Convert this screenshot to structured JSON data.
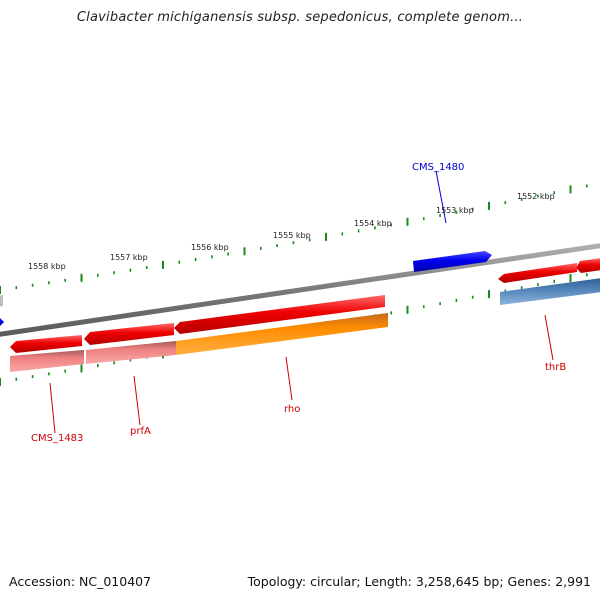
{
  "title": "Clavibacter michiganensis subsp. sepedonicus, complete genom...",
  "footer": {
    "accession": "Accession: NC_010407",
    "summary": "Topology: circular; Length: 3,258,645 bp; Genes: 2,991"
  },
  "colors": {
    "forward_gene": "#0000ee",
    "reverse_gene": "#ee0000",
    "rRNA_like": "#ff8c00",
    "ortholog_row": "#f08080",
    "ortholog_blue": "#4f82b8",
    "backbone": "#808080",
    "ticks": "#1a8a1a",
    "blue_label": "#0000cc",
    "red_label": "#cc0000"
  },
  "scale_labels": [
    "1552 kbp",
    "1553 kbp",
    "1554 kbp",
    "1555 kbp",
    "1556 kbp",
    "1557 kbp",
    "1558 kbp"
  ],
  "gene_labels": [
    {
      "name": "CMS_1480",
      "color": "blue_label"
    },
    {
      "name": "CMS_1483",
      "color": "red_label"
    },
    {
      "name": "prfA",
      "color": "red_label"
    },
    {
      "name": "rho",
      "color": "red_label"
    },
    {
      "name": "thrB",
      "color": "red_label"
    }
  ]
}
